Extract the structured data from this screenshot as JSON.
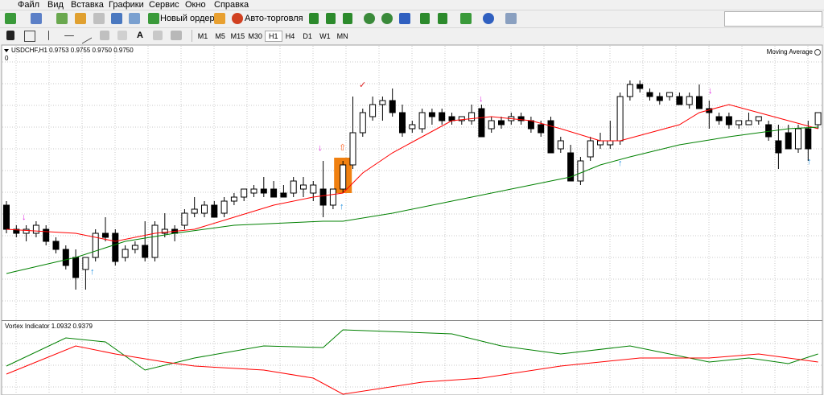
{
  "menu": [
    "Файл",
    "Вид",
    "Вставка",
    "Графики",
    "Сервис",
    "Окно",
    "Справка"
  ],
  "toolbar": {
    "new_order": "Новый ордер",
    "auto_trading": "Авто-торговля"
  },
  "timeframes": [
    "M1",
    "M5",
    "M15",
    "M30",
    "H1",
    "H4",
    "D1",
    "W1",
    "MN"
  ],
  "chart_data": [
    {
      "type": "candlestick",
      "title": "USDCHF,H1  0.9753 0.9755 0.9750 0.9750",
      "subtitle": "0",
      "indicator": "Moving Average",
      "up_color": "#ffffff",
      "down_color": "#000000",
      "open": [
        0.97,
        0.9685,
        0.96825,
        0.96825,
        0.9685,
        0.96775,
        0.96725,
        0.96675,
        0.966,
        0.96675,
        0.96825,
        0.96825,
        0.96675,
        0.96725,
        0.9675,
        0.96675,
        0.96825,
        0.9685,
        0.96875,
        0.9695,
        0.9695,
        0.97,
        0.9695,
        0.97025,
        0.9705,
        0.97075,
        0.971,
        0.971,
        0.97075,
        0.97075,
        0.971,
        0.97075,
        0.971,
        0.97,
        0.971,
        0.9725,
        0.9745,
        0.9755,
        0.97625,
        0.9765,
        0.97575,
        0.97475,
        0.97475,
        0.97575,
        0.97575,
        0.9755,
        0.97525,
        0.97525,
        0.976,
        0.97475,
        0.97525,
        0.97525,
        0.9755,
        0.97525,
        0.975,
        0.97525,
        0.9735,
        0.97325,
        0.9715,
        0.973,
        0.97375,
        0.97375,
        0.974,
        0.97675,
        0.9775,
        0.977,
        0.97675,
        0.97675,
        0.97675,
        0.97625,
        0.97675,
        0.976,
        0.9755,
        0.9755,
        0.975,
        0.975,
        0.97525,
        0.975,
        0.974,
        0.9745,
        0.9735,
        0.97475,
        0.975
      ],
      "high": [
        0.97025,
        0.96875,
        0.96875,
        0.969,
        0.96875,
        0.968,
        0.9675,
        0.96725,
        0.96675,
        0.9685,
        0.96925,
        0.9685,
        0.9675,
        0.96775,
        0.969,
        0.969,
        0.9695,
        0.96875,
        0.96975,
        0.9705,
        0.97025,
        0.97025,
        0.9705,
        0.97075,
        0.971,
        0.97125,
        0.97175,
        0.9715,
        0.97125,
        0.97175,
        0.97175,
        0.9715,
        0.97275,
        0.971,
        0.97275,
        0.97675,
        0.976,
        0.97675,
        0.97675,
        0.97725,
        0.97625,
        0.97525,
        0.976,
        0.976,
        0.976,
        0.97575,
        0.9755,
        0.97625,
        0.97625,
        0.9755,
        0.9755,
        0.97575,
        0.97575,
        0.9755,
        0.97525,
        0.9755,
        0.97425,
        0.97375,
        0.973,
        0.97425,
        0.9745,
        0.97525,
        0.977,
        0.97775,
        0.97775,
        0.97725,
        0.977,
        0.977,
        0.977,
        0.977,
        0.9775,
        0.9765,
        0.97575,
        0.97575,
        0.97525,
        0.97575,
        0.9755,
        0.97525,
        0.975,
        0.975,
        0.975,
        0.97525,
        0.97575
      ],
      "low": [
        0.96825,
        0.968,
        0.96775,
        0.968,
        0.9675,
        0.967,
        0.966,
        0.96475,
        0.96475,
        0.9665,
        0.96775,
        0.96625,
        0.9665,
        0.967,
        0.9665,
        0.9665,
        0.968,
        0.96775,
        0.9685,
        0.96925,
        0.96925,
        0.96925,
        0.96925,
        0.97,
        0.97025,
        0.9705,
        0.9705,
        0.9705,
        0.9705,
        0.9705,
        0.9705,
        0.97025,
        0.96925,
        0.96975,
        0.97075,
        0.97225,
        0.97425,
        0.97525,
        0.97525,
        0.9755,
        0.97425,
        0.9745,
        0.9745,
        0.975,
        0.975,
        0.975,
        0.975,
        0.975,
        0.97425,
        0.9745,
        0.97475,
        0.975,
        0.975,
        0.9745,
        0.97425,
        0.97325,
        0.97325,
        0.9715,
        0.97125,
        0.97275,
        0.9735,
        0.9735,
        0.97375,
        0.9765,
        0.977,
        0.9765,
        0.97625,
        0.9765,
        0.97625,
        0.976,
        0.976,
        0.97475,
        0.975,
        0.97475,
        0.97475,
        0.975,
        0.975,
        0.974,
        0.97225,
        0.9735,
        0.97325,
        0.97275,
        0.97475
      ],
      "close": [
        0.9685,
        0.96825,
        0.9685,
        0.96875,
        0.96775,
        0.96725,
        0.96625,
        0.9655,
        0.96675,
        0.96825,
        0.968,
        0.9665,
        0.96725,
        0.9675,
        0.96675,
        0.96875,
        0.9685,
        0.96825,
        0.9695,
        0.96975,
        0.97,
        0.96925,
        0.97025,
        0.9705,
        0.971,
        0.971,
        0.97075,
        0.9705,
        0.9705,
        0.9715,
        0.97125,
        0.97125,
        0.97,
        0.971,
        0.9725,
        0.9745,
        0.97575,
        0.97625,
        0.9765,
        0.97575,
        0.9745,
        0.975,
        0.97575,
        0.9755,
        0.97525,
        0.97525,
        0.9755,
        0.97575,
        0.97425,
        0.97525,
        0.975,
        0.9755,
        0.97525,
        0.97475,
        0.9745,
        0.97325,
        0.974,
        0.9715,
        0.97275,
        0.974,
        0.974,
        0.974,
        0.97675,
        0.9775,
        0.97725,
        0.97675,
        0.9765,
        0.977,
        0.97625,
        0.97675,
        0.976,
        0.97575,
        0.97525,
        0.975,
        0.97525,
        0.97525,
        0.9755,
        0.97425,
        0.97325,
        0.9735,
        0.97475,
        0.9735,
        0.97575
      ],
      "ylim": [
        0.963,
        0.97925
      ],
      "series": [
        {
          "color": "#ff0000",
          "x": [
            1,
            8,
            12,
            16,
            20,
            24,
            28,
            32,
            35,
            37,
            40,
            43,
            46,
            50,
            54,
            57,
            61,
            63,
            66,
            69,
            71,
            74,
            77,
            80,
            83
          ],
          "values": [
            0.9685,
            0.96825,
            0.96775,
            0.96825,
            0.9685,
            0.96925,
            0.97,
            0.9705,
            0.97075,
            0.972,
            0.97325,
            0.97425,
            0.97525,
            0.9755,
            0.97525,
            0.97475,
            0.974,
            0.974,
            0.9745,
            0.975,
            0.97575,
            0.97625,
            0.97575,
            0.97525,
            0.97475
          ]
        },
        {
          "color": "#008000",
          "x": [
            1,
            8,
            13,
            18,
            24,
            33,
            35,
            40,
            46,
            52,
            58,
            61,
            64,
            69,
            74,
            80,
            83
          ],
          "values": [
            0.96575,
            0.96675,
            0.96775,
            0.96825,
            0.96875,
            0.969,
            0.969,
            0.9695,
            0.97025,
            0.971,
            0.97175,
            0.9725,
            0.973,
            0.97375,
            0.97425,
            0.97475,
            0.97485
          ]
        }
      ]
    },
    {
      "type": "line",
      "title": "Vortex Indicator 1.0932 0.9379",
      "ylim": [
        0.59,
        1.45
      ],
      "series": [
        {
          "color": "#008000",
          "x": [
            1,
            7,
            11,
            15,
            20,
            27,
            33,
            35,
            46,
            51,
            57,
            64,
            68,
            72,
            76,
            80,
            83
          ],
          "values": [
            0.95,
            1.3,
            1.25,
            0.9,
            1.05,
            1.2,
            1.18,
            1.4,
            1.35,
            1.2,
            1.1,
            1.2,
            1.1,
            1.0,
            1.05,
            0.98,
            1.1
          ]
        },
        {
          "color": "#ff0000",
          "x": [
            1,
            8,
            12,
            17,
            20,
            27,
            32,
            35,
            43,
            49,
            57,
            65,
            72,
            77,
            83
          ],
          "values": [
            0.85,
            1.2,
            1.1,
            1.0,
            0.95,
            0.9,
            0.8,
            0.6,
            0.75,
            0.8,
            0.95,
            1.05,
            1.05,
            1.1,
            1.0
          ]
        }
      ]
    }
  ]
}
